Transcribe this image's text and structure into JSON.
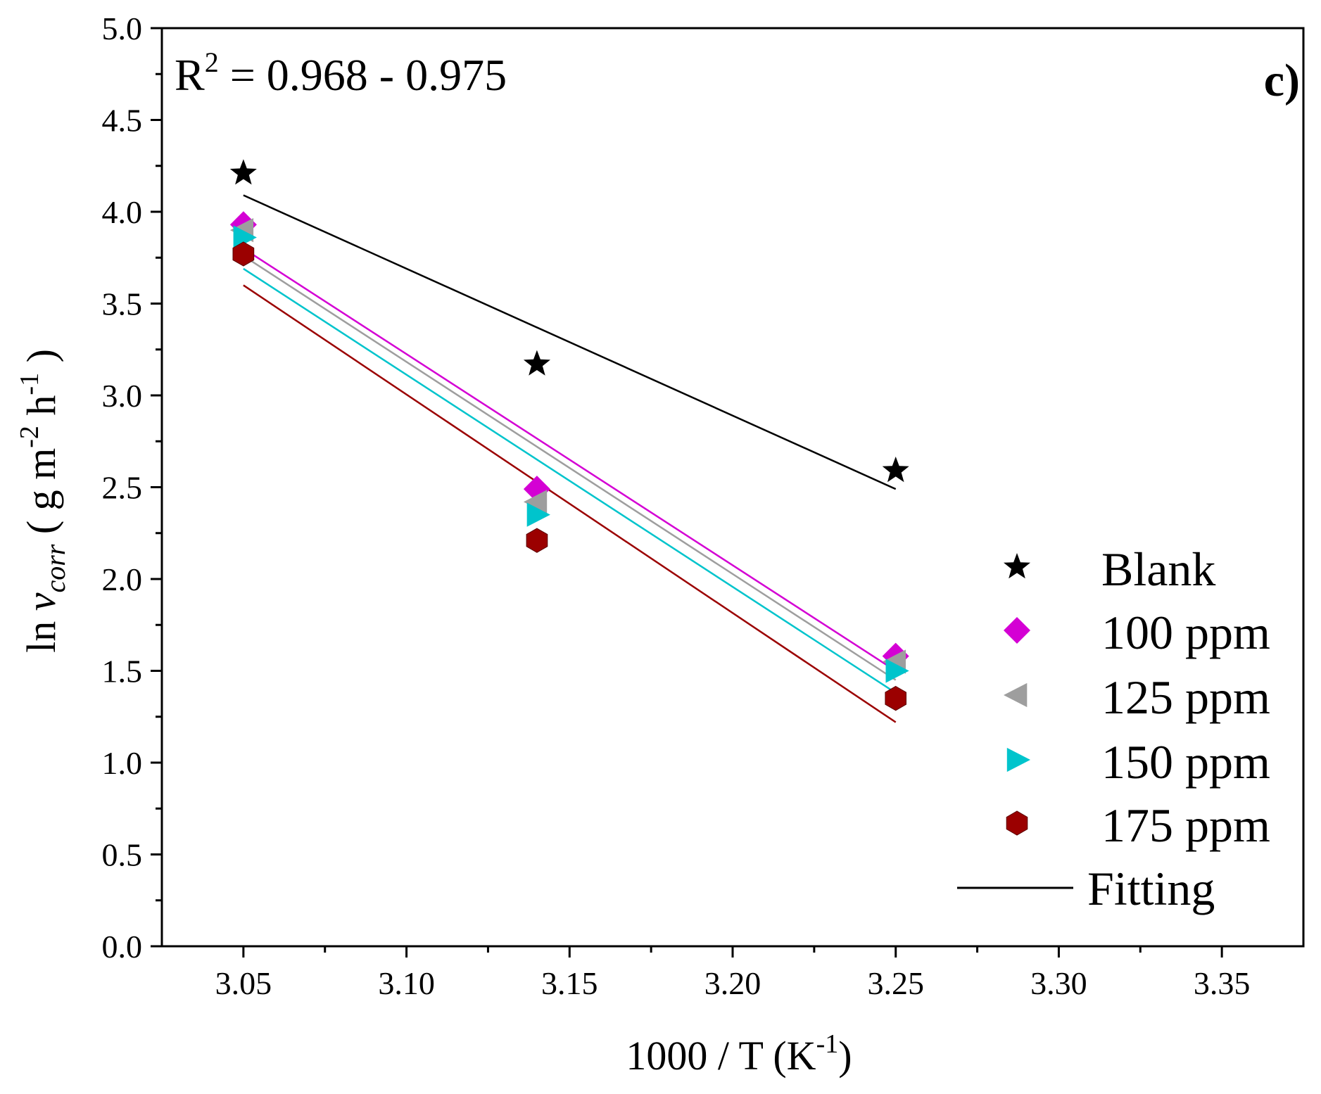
{
  "chart_data": {
    "type": "scatter",
    "panel_label": "c)",
    "annotation": {
      "base": "R",
      "superscript": "2",
      "rest": " = 0.968 - 0.975"
    },
    "xlabel": {
      "main": "1000 / T (K",
      "superscript": "-1",
      "close": ")"
    },
    "ylabel": {
      "prefix": "ln ",
      "v": "v",
      "sub": "corr",
      "open": " ( g m",
      "sup1": "-2",
      "mid": " h",
      "sup2": "-1",
      "close": " )"
    },
    "xlim": [
      3.025,
      3.375
    ],
    "ylim": [
      0.0,
      5.0
    ],
    "x_ticks": [
      "3.05",
      "3.10",
      "3.15",
      "3.20",
      "3.25",
      "3.30",
      "3.35"
    ],
    "y_ticks": [
      "0.0",
      "0.5",
      "1.0",
      "1.5",
      "2.0",
      "2.5",
      "3.0",
      "3.5",
      "4.0",
      "4.5",
      "5.0"
    ],
    "x": [
      3.05,
      3.14,
      3.25
    ],
    "legend_position": "right",
    "series": [
      {
        "name": "Blank",
        "marker": "star",
        "color": "#000000",
        "values": [
          4.21,
          3.17,
          2.59
        ],
        "fit": [
          4.09,
          2.49
        ]
      },
      {
        "name": "100 ppm",
        "marker": "diamond",
        "color": "#d400d4",
        "values": [
          3.93,
          2.49,
          1.58
        ],
        "fit": [
          3.8,
          1.5
        ]
      },
      {
        "name": "125 ppm",
        "marker": "triangle-left",
        "color": "#9e9e9e",
        "values": [
          3.9,
          2.42,
          1.55
        ],
        "fit": [
          3.76,
          1.45
        ]
      },
      {
        "name": "150 ppm",
        "marker": "triangle-right",
        "color": "#00c4cc",
        "values": [
          3.86,
          2.35,
          1.5
        ],
        "fit": [
          3.69,
          1.38
        ]
      },
      {
        "name": "175 ppm",
        "marker": "hexagon",
        "color": "#9b0000",
        "values": [
          3.77,
          2.21,
          1.35
        ],
        "fit": [
          3.6,
          1.22
        ]
      }
    ],
    "fit_legend": {
      "label": "Fitting",
      "color": "#000000"
    }
  }
}
